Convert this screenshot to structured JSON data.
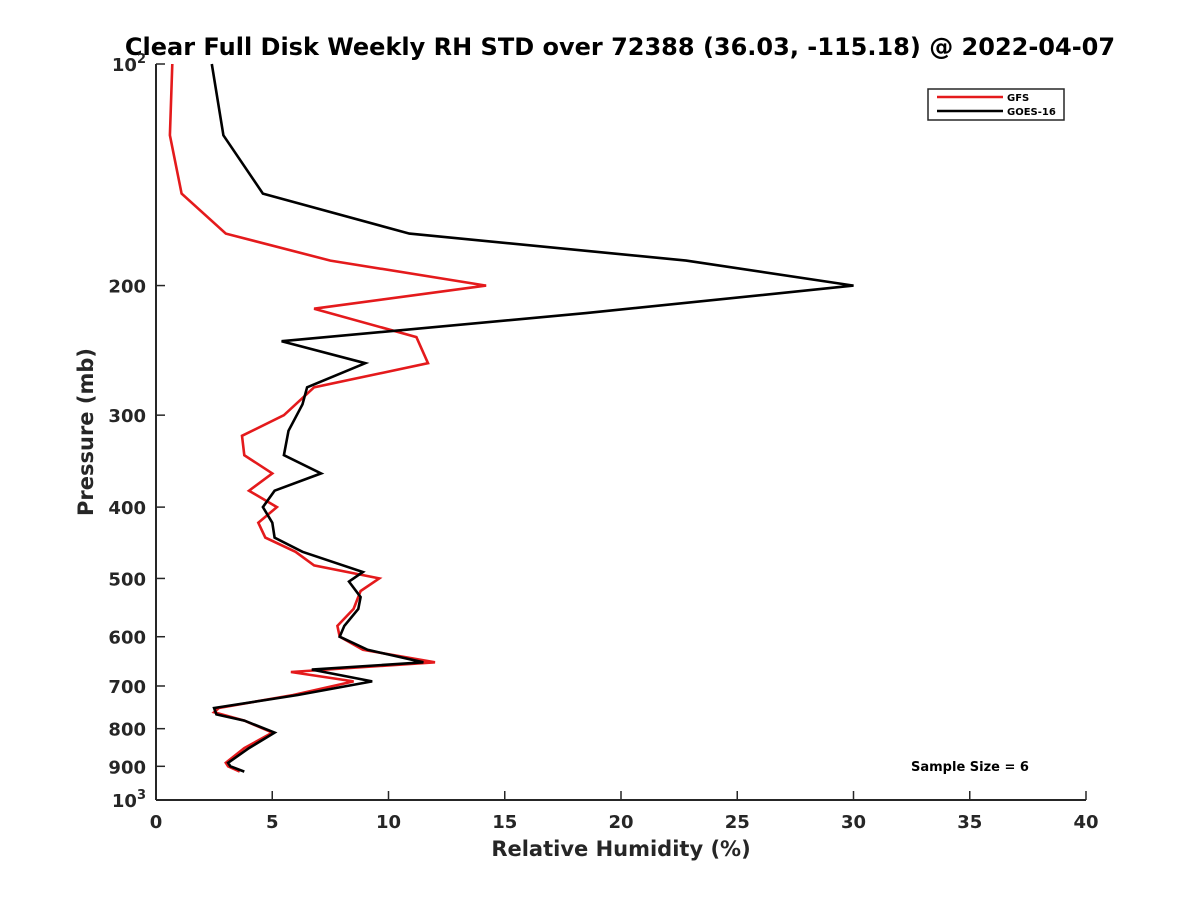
{
  "chart_data": {
    "type": "line",
    "title": "Clear Full Disk Weekly RH STD over 72388 (36.03, -115.18) @ 2022-04-07",
    "xlabel": "Relative Humidity (%)",
    "ylabel": "Pressure (mb)",
    "xlim": [
      0,
      40
    ],
    "ylim": [
      100,
      1000
    ],
    "y_scale": "log",
    "y_reversed": true,
    "grid": false,
    "legend_position": "top-right",
    "x_ticks": [
      "0",
      "5",
      "10",
      "15",
      "20",
      "25",
      "30",
      "35",
      "40"
    ],
    "x_tick_values": [
      0,
      5,
      10,
      15,
      20,
      25,
      30,
      35,
      40
    ],
    "y_ticks": [
      {
        "value": 100,
        "base": "10",
        "exp": "2"
      },
      {
        "value": 200,
        "label": "200"
      },
      {
        "value": 300,
        "label": "300"
      },
      {
        "value": 400,
        "label": "400"
      },
      {
        "value": 500,
        "label": "500"
      },
      {
        "value": 600,
        "label": "600"
      },
      {
        "value": 700,
        "label": "700"
      },
      {
        "value": 800,
        "label": "800"
      },
      {
        "value": 900,
        "label": "900"
      },
      {
        "value": 1000,
        "base": "10",
        "exp": "3"
      }
    ],
    "annotation": "Sample Size = 6",
    "series": [
      {
        "name": "GFS",
        "color": "#e41a1c",
        "points": [
          [
            0.7,
            100
          ],
          [
            0.6,
            125
          ],
          [
            1.1,
            150
          ],
          [
            3.0,
            170
          ],
          [
            7.5,
            185
          ],
          [
            14.2,
            200
          ],
          [
            6.8,
            215
          ],
          [
            11.2,
            235
          ],
          [
            11.7,
            255
          ],
          [
            6.8,
            275
          ],
          [
            5.5,
            300
          ],
          [
            3.7,
            320
          ],
          [
            3.8,
            340
          ],
          [
            5.0,
            360
          ],
          [
            4.0,
            380
          ],
          [
            5.2,
            400
          ],
          [
            4.4,
            420
          ],
          [
            4.7,
            440
          ],
          [
            6.0,
            460
          ],
          [
            6.8,
            480
          ],
          [
            9.6,
            500
          ],
          [
            8.8,
            520
          ],
          [
            8.5,
            550
          ],
          [
            7.8,
            580
          ],
          [
            7.9,
            600
          ],
          [
            8.9,
            625
          ],
          [
            12.0,
            650
          ],
          [
            5.8,
            670
          ],
          [
            8.5,
            690
          ],
          [
            5.9,
            720
          ],
          [
            2.7,
            750
          ],
          [
            2.5,
            760
          ],
          [
            3.8,
            780
          ],
          [
            5.0,
            810
          ],
          [
            3.8,
            850
          ],
          [
            3.0,
            890
          ],
          [
            3.1,
            900
          ],
          [
            3.6,
            915
          ]
        ]
      },
      {
        "name": "GOES-16",
        "color": "#000000",
        "points": [
          [
            2.4,
            100
          ],
          [
            2.9,
            125
          ],
          [
            4.6,
            150
          ],
          [
            10.9,
            170
          ],
          [
            22.8,
            185
          ],
          [
            30.0,
            200
          ],
          [
            18.5,
            218
          ],
          [
            5.4,
            238
          ],
          [
            9.0,
            255
          ],
          [
            6.5,
            275
          ],
          [
            6.3,
            290
          ],
          [
            5.7,
            315
          ],
          [
            5.5,
            340
          ],
          [
            7.1,
            360
          ],
          [
            5.1,
            380
          ],
          [
            4.6,
            400
          ],
          [
            5.0,
            420
          ],
          [
            5.1,
            440
          ],
          [
            6.3,
            460
          ],
          [
            8.9,
            490
          ],
          [
            8.3,
            505
          ],
          [
            8.8,
            530
          ],
          [
            8.7,
            550
          ],
          [
            8.1,
            580
          ],
          [
            7.9,
            600
          ],
          [
            9.1,
            625
          ],
          [
            11.5,
            650
          ],
          [
            6.7,
            665
          ],
          [
            9.3,
            690
          ],
          [
            6.1,
            720
          ],
          [
            2.5,
            750
          ],
          [
            2.6,
            765
          ],
          [
            3.8,
            780
          ],
          [
            5.1,
            810
          ],
          [
            4.0,
            850
          ],
          [
            3.1,
            890
          ],
          [
            3.2,
            900
          ],
          [
            3.8,
            915
          ]
        ]
      }
    ]
  }
}
